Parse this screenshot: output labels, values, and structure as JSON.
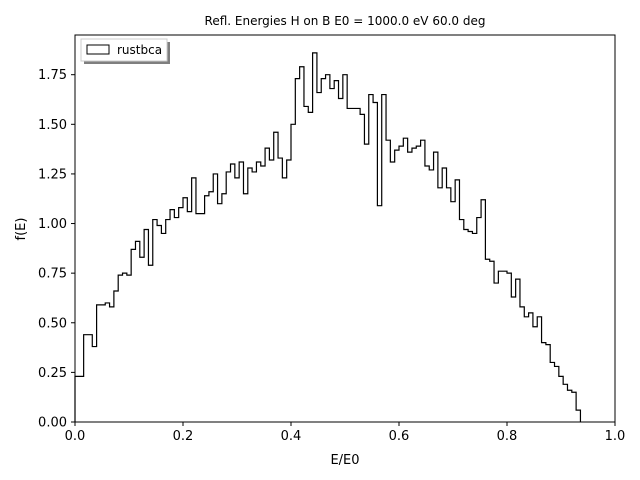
{
  "chart_data": {
    "type": "histogram-step",
    "title": "Refl. Energies H on B E0 = 1000.0 eV 60.0 deg",
    "xlabel": "E/E0",
    "ylabel": "f(E)",
    "xlim": [
      0.0,
      1.0
    ],
    "ylim": [
      0.0,
      1.95
    ],
    "xticks": [
      0.0,
      0.2,
      0.4,
      0.6,
      0.8,
      1.0
    ],
    "xtick_labels": [
      "0.0",
      "0.2",
      "0.4",
      "0.6",
      "0.8",
      "1.0"
    ],
    "yticks": [
      0.0,
      0.25,
      0.5,
      0.75,
      1.0,
      1.25,
      1.5,
      1.75
    ],
    "ytick_labels": [
      "0.00",
      "0.25",
      "0.50",
      "0.75",
      "1.00",
      "1.25",
      "1.50",
      "1.75"
    ],
    "legend": {
      "position": "upper-left",
      "entries": [
        "rustbca"
      ]
    },
    "series": [
      {
        "name": "rustbca",
        "color": "#000000",
        "bin_width": 0.008,
        "x_start": 0.0,
        "values": [
          0.23,
          0.23,
          0.44,
          0.44,
          0.38,
          0.59,
          0.59,
          0.6,
          0.58,
          0.66,
          0.74,
          0.75,
          0.74,
          0.87,
          0.91,
          0.83,
          0.97,
          0.79,
          1.02,
          0.99,
          0.95,
          1.02,
          1.07,
          1.03,
          1.08,
          1.13,
          1.06,
          1.23,
          1.05,
          1.05,
          1.14,
          1.16,
          1.25,
          1.1,
          1.15,
          1.26,
          1.3,
          1.23,
          1.31,
          1.15,
          1.28,
          1.26,
          1.31,
          1.29,
          1.38,
          1.32,
          1.46,
          1.33,
          1.23,
          1.32,
          1.5,
          1.73,
          1.79,
          1.59,
          1.56,
          1.86,
          1.66,
          1.73,
          1.75,
          1.68,
          1.72,
          1.63,
          1.75,
          1.58,
          1.58,
          1.58,
          1.55,
          1.4,
          1.65,
          1.61,
          1.09,
          1.65,
          1.42,
          1.31,
          1.37,
          1.39,
          1.43,
          1.36,
          1.38,
          1.39,
          1.42,
          1.29,
          1.27,
          1.36,
          1.18,
          1.28,
          1.18,
          1.11,
          1.22,
          1.02,
          0.97,
          0.96,
          0.95,
          1.03,
          1.12,
          0.82,
          0.81,
          0.7,
          0.76,
          0.76,
          0.75,
          0.63,
          0.72,
          0.58,
          0.53,
          0.55,
          0.48,
          0.53,
          0.4,
          0.39,
          0.3,
          0.28,
          0.23,
          0.19,
          0.16,
          0.15,
          0.06
        ]
      }
    ]
  }
}
